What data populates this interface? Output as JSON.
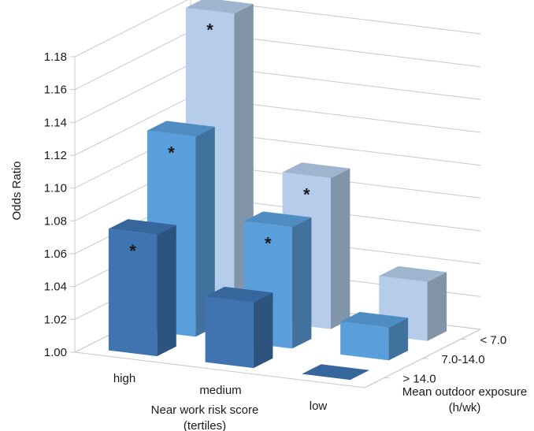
{
  "chart_data": {
    "type": "bar",
    "subtype": "3d-clustered-bar",
    "title": "",
    "ylabel": "Odds Ratio",
    "ylim": [
      1.0,
      1.18
    ],
    "yticks": [
      "1.00",
      "1.02",
      "1.04",
      "1.06",
      "1.08",
      "1.10",
      "1.12",
      "1.14",
      "1.16",
      "1.18"
    ],
    "xlabel": "Near work risk score\n(tertiles)",
    "categories": [
      "high",
      "medium",
      "low"
    ],
    "depth_label": "Mean outdoor exposure\n(h/wk)",
    "series": [
      {
        "name": "> 14.0",
        "color": "#3f74b1",
        "values": [
          1.074,
          1.04,
          1.0
        ],
        "significant": [
          true,
          false,
          false
        ]
      },
      {
        "name": "7.0-14.0",
        "color": "#5a9fdc",
        "values": [
          1.122,
          1.074,
          1.02
        ],
        "significant": [
          true,
          true,
          false
        ]
      },
      {
        "name": "< 7.0",
        "color": "#b5cdea",
        "values": [
          1.185,
          1.092,
          1.036
        ],
        "significant": [
          true,
          true,
          false
        ]
      }
    ],
    "significance_marker": "*",
    "grid": true,
    "legend": "none"
  }
}
